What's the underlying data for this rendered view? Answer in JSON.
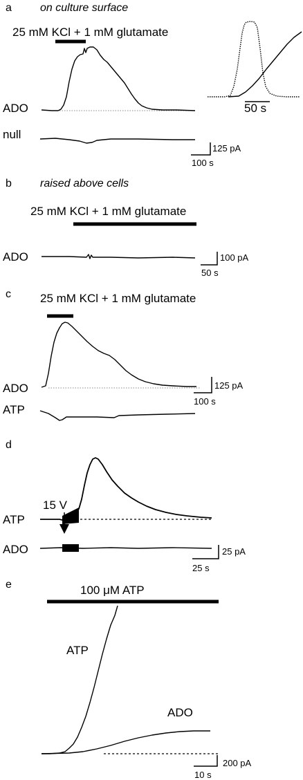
{
  "panels": {
    "a": {
      "letter": "a",
      "condition": "on culture surface",
      "stimulus": "25 mM KCl + 1 mM glutamate",
      "trace_labels": [
        "ADO",
        "null"
      ],
      "inset_scale": "50 s",
      "scale_y": "125 pA",
      "scale_x": "100 s"
    },
    "b": {
      "letter": "b",
      "condition": "raised above cells",
      "stimulus": "25 mM KCl + 1 mM glutamate",
      "trace_labels": [
        "ADO"
      ],
      "scale_y": "100 pA",
      "scale_x": "50 s"
    },
    "c": {
      "letter": "c",
      "stimulus": "25 mM KCl + 1 mM glutamate",
      "trace_labels": [
        "ADO",
        "ATP"
      ],
      "scale_y": "125 pA",
      "scale_x": "100 s"
    },
    "d": {
      "letter": "d",
      "stimulus": "15 V",
      "trace_labels": [
        "ATP",
        "ADO"
      ],
      "scale_y": "25 pA",
      "scale_x": "25 s"
    },
    "e": {
      "letter": "e",
      "stimulus": "100 μM ATP",
      "trace_labels": [
        "ATP",
        "ADO"
      ],
      "scale_y": "200 pA",
      "scale_x": "10 s"
    }
  },
  "chart_data": [
    {
      "type": "line",
      "series": [
        {
          "name": "ADO"
        },
        {
          "name": "null"
        }
      ],
      "scale_bars": {
        "current_pA": 125,
        "time_s": 100
      },
      "inset_scale_time_s": 50
    },
    {
      "type": "line",
      "series": [
        {
          "name": "ADO"
        }
      ],
      "scale_bars": {
        "current_pA": 100,
        "time_s": 50
      }
    },
    {
      "type": "line",
      "series": [
        {
          "name": "ADO"
        },
        {
          "name": "ATP"
        }
      ],
      "scale_bars": {
        "current_pA": 125,
        "time_s": 100
      }
    },
    {
      "type": "line",
      "series": [
        {
          "name": "ATP"
        },
        {
          "name": "ADO"
        }
      ],
      "scale_bars": {
        "current_pA": 25,
        "time_s": 25
      }
    },
    {
      "type": "line",
      "series": [
        {
          "name": "ATP"
        },
        {
          "name": "ADO"
        }
      ],
      "scale_bars": {
        "current_pA": 200,
        "time_s": 10
      }
    }
  ]
}
